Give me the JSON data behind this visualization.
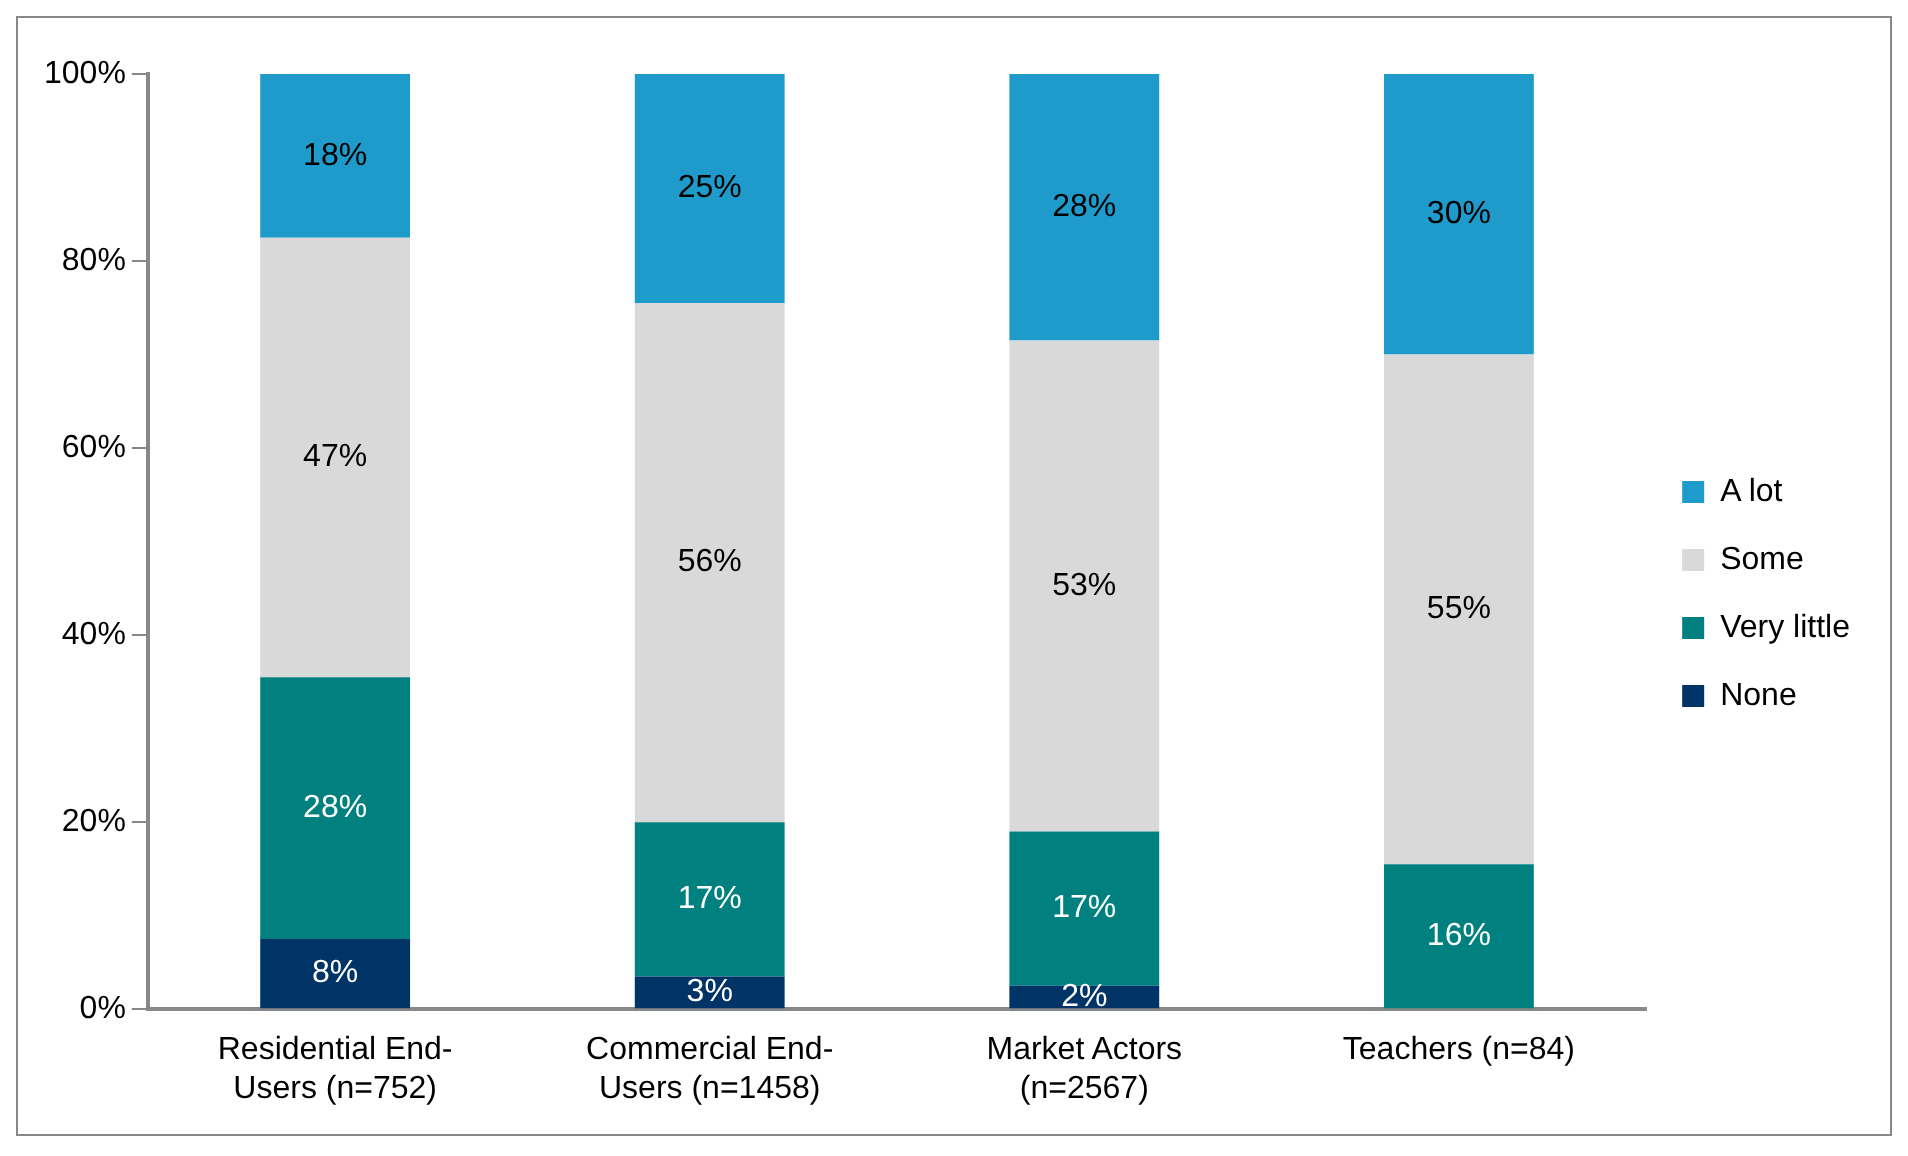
{
  "chart_data": {
    "type": "bar",
    "stacked": true,
    "categories": [
      "Residential End-Users (n=752)",
      "Commercial End-Users (n=1458)",
      "Market Actors (n=2567)",
      "Teachers (n=84)"
    ],
    "series": [
      {
        "name": "None",
        "color": "#003366",
        "values": [
          7.5,
          3.5,
          2.5,
          0
        ],
        "value_labels": [
          "8%",
          "3%",
          "2%",
          null
        ]
      },
      {
        "name": "Very little",
        "color": "#00807f",
        "values": [
          28,
          16.5,
          16.5,
          15.5
        ],
        "value_labels": [
          "28%",
          "17%",
          "17%",
          "16%"
        ]
      },
      {
        "name": "Some",
        "color": "#d9d9d9",
        "values": [
          47,
          55.5,
          52.5,
          54.5
        ],
        "value_labels": [
          "47%",
          "56%",
          "53%",
          "55%"
        ]
      },
      {
        "name": "A lot",
        "color": "#1e9bcb",
        "values": [
          17.5,
          24.5,
          28.5,
          30
        ],
        "value_labels": [
          "18%",
          "25%",
          "28%",
          "30%"
        ]
      }
    ],
    "ylim": [
      0,
      100
    ],
    "yticks": [
      {
        "value": 0,
        "label": "0%"
      },
      {
        "value": 20,
        "label": "20%"
      },
      {
        "value": 40,
        "label": "40%"
      },
      {
        "value": 60,
        "label": "60%"
      },
      {
        "value": 80,
        "label": "80%"
      },
      {
        "value": 100,
        "label": "100%"
      }
    ],
    "grid": false,
    "legend": "right"
  }
}
